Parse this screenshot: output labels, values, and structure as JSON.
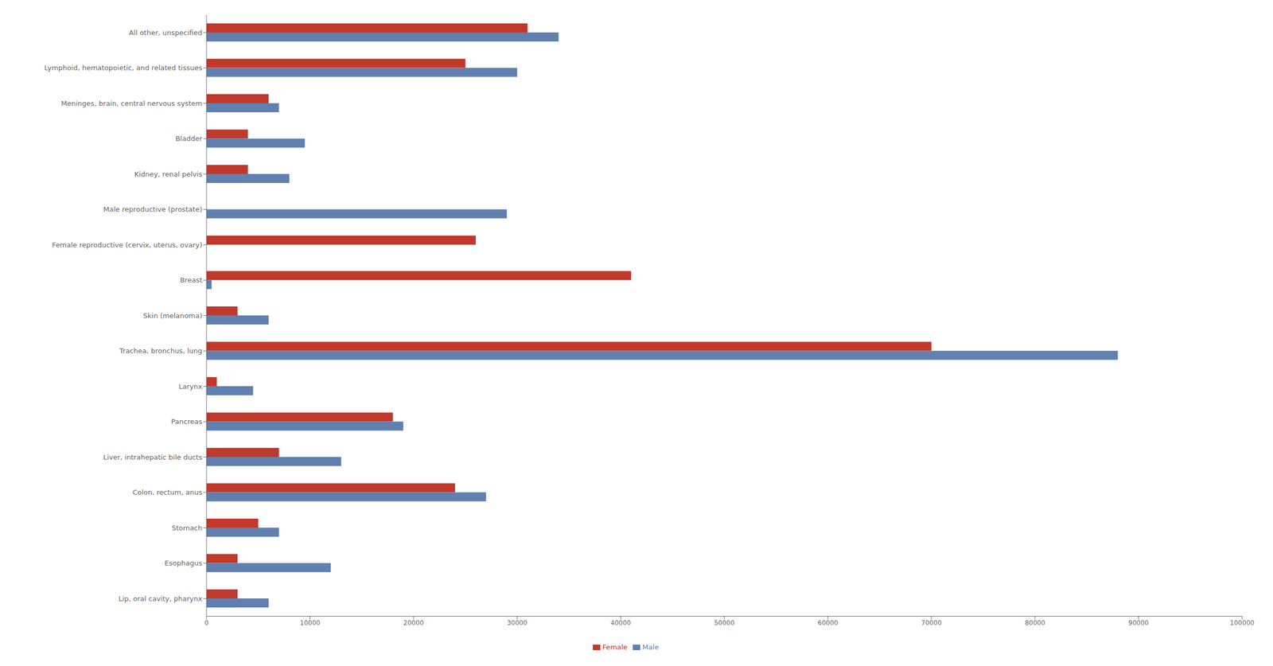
{
  "chart_data": {
    "type": "bar",
    "orientation": "horizontal",
    "categories": [
      "Lip, oral cavity, pharynx",
      "Esophagus",
      "Stomach",
      "Colon, rectum, anus",
      "Liver, intrahepatic bile ducts",
      "Pancreas",
      "Larynx",
      "Trachea, bronchus, lung",
      "Skin (melanoma)",
      "Breast",
      "Female reproductive (cervix, uterus, ovary)",
      "Male reproductive (prostate)",
      "Kidney, renal pelvis",
      "Bladder",
      "Meninges, brain, central nervous system",
      "Lymphoid, hematopoietic, and related tissues",
      "All other, unspecified"
    ],
    "series": [
      {
        "name": "Female",
        "color": "#C0392B",
        "values": [
          3000,
          3000,
          5000,
          24000,
          7000,
          18000,
          1000,
          70000,
          3000,
          41000,
          26000,
          0,
          4000,
          4000,
          6000,
          25000,
          31000
        ]
      },
      {
        "name": "Male",
        "color": "#6080B0",
        "values": [
          6000,
          12000,
          7000,
          27000,
          13000,
          19000,
          4500,
          88000,
          6000,
          500,
          0,
          29000,
          8000,
          9500,
          7000,
          30000,
          34000
        ]
      }
    ],
    "xlim": [
      0,
      100000
    ],
    "xticks": [
      0,
      10000,
      20000,
      30000,
      40000,
      50000,
      60000,
      70000,
      80000,
      90000,
      100000
    ],
    "grid": false,
    "legend": "bottom"
  }
}
